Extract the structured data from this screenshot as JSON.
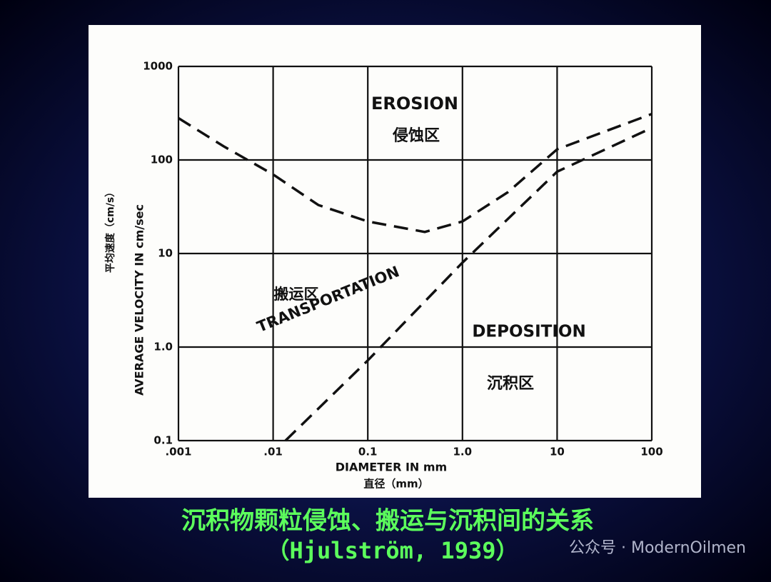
{
  "chart_data": {
    "type": "line",
    "x_label": "DIAMETER IN mm",
    "x_label_cn": "直径（mm）",
    "y_label": "AVERAGE VELOCITY IN cm/sec",
    "y_label_cn": "平均速度（cm/s）",
    "xscale": "log",
    "yscale": "log",
    "xlim": [
      0.001,
      100
    ],
    "ylim": [
      0.1,
      1000
    ],
    "xticks": [
      {
        "value": 0.001,
        "label": ".001"
      },
      {
        "value": 0.01,
        "label": ".01"
      },
      0.1,
      {
        "value": 1,
        "label": "1.0"
      },
      10,
      100
    ],
    "yticks": [
      0.1,
      {
        "value": 1,
        "label": "1.0"
      },
      10,
      100,
      1000
    ],
    "grid": true,
    "series": [
      {
        "color": "#111111",
        "x": [
          0.001,
          0.003,
          0.01,
          0.03,
          0.1,
          0.4,
          1,
          3,
          10,
          100
        ],
        "values": [
          280,
          140,
          70,
          33,
          22,
          17,
          22,
          45,
          130,
          310
        ]
      },
      {
        "color": "#111111",
        "x": [
          0.0135,
          0.1,
          1,
          10,
          100
        ],
        "values": [
          0.1,
          0.72,
          8,
          75,
          220
        ]
      }
    ],
    "annotations": [
      "EROSION",
      "侵蚀区",
      "搬运区",
      "TRANSPORTATION",
      "DEPOSITION",
      "沉积区"
    ]
  },
  "slide": {
    "title": "沉积物颗粒侵蚀、搬运与沉积间的关系",
    "subtitle": "（Hjulström, 1939）",
    "watermark": "公众号 · ModernOilmen"
  }
}
